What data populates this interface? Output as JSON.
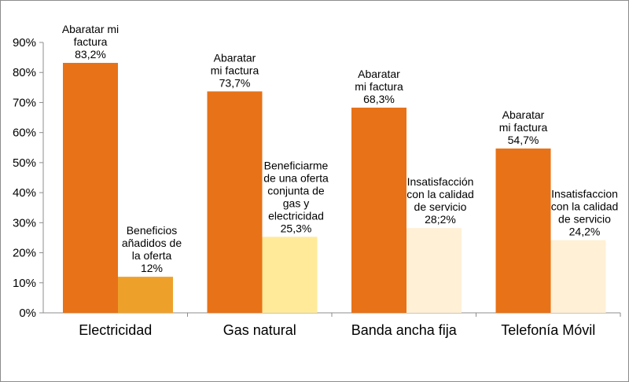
{
  "chart_data": {
    "type": "bar",
    "categories": [
      "Electricidad",
      "Gas natural",
      "Banda ancha fija",
      "Telefonía Móvil"
    ],
    "ylim": [
      0,
      90
    ],
    "ytick_labels": [
      "0%",
      "10%",
      "20%",
      "30%",
      "40%",
      "50%",
      "60%",
      "70%",
      "80%",
      "90%"
    ],
    "grid": false,
    "legend": "none",
    "series": [
      {
        "values": [
          83.2,
          73.7,
          68.3,
          54.7
        ],
        "colors": [
          "#E87217",
          "#E87217",
          "#E87217",
          "#E87217"
        ],
        "labels": [
          [
            "Abaratar mi",
            "factura",
            "83,2%"
          ],
          [
            "Abaratar",
            "mi factura",
            "73,7%"
          ],
          [
            "Abaratar",
            "mi factura",
            "68,3%"
          ],
          [
            "Abaratar",
            "mi factura",
            "54,7%"
          ]
        ]
      },
      {
        "values": [
          12,
          25.3,
          28.2,
          24.2
        ],
        "colors": [
          "#EEA12A",
          "#FFEA9A",
          "#FFF0D6",
          "#FFF0D6"
        ],
        "labels": [
          [
            "Beneficios",
            "añadidos de",
            "la oferta",
            "12%"
          ],
          [
            "Beneficiarme",
            "de una oferta",
            "conjunta de",
            "gas y",
            "electricidad",
            "25,3%"
          ],
          [
            "Insatisfacción",
            "con la calidad",
            "de servicio",
            "28;2%"
          ],
          [
            "Insatisfaccion",
            "con la calidad",
            "de servicio",
            "24,2%"
          ]
        ]
      }
    ]
  }
}
